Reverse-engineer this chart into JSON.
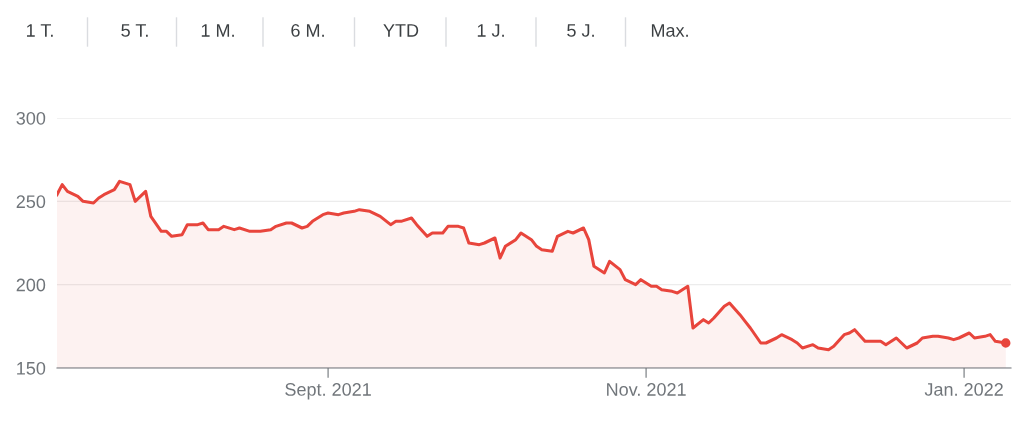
{
  "chart_data": {
    "type": "area",
    "annotations": [
      "1 T.",
      "5 T.",
      "1 M.",
      "6 M.",
      "YTD",
      "1 J.",
      "5 J.",
      "Max."
    ],
    "x": [
      "2021-07-11",
      "2021-07-12",
      "2021-07-13",
      "2021-07-15",
      "2021-07-16",
      "2021-07-18",
      "2021-07-19",
      "2021-07-20",
      "2021-07-22",
      "2021-07-23",
      "2021-07-25",
      "2021-07-26",
      "2021-07-28",
      "2021-07-29",
      "2021-07-31",
      "2021-08-01",
      "2021-08-02",
      "2021-08-04",
      "2021-08-05",
      "2021-08-07",
      "2021-08-08",
      "2021-08-09",
      "2021-08-11",
      "2021-08-12",
      "2021-08-14",
      "2021-08-15",
      "2021-08-17",
      "2021-08-18",
      "2021-08-19",
      "2021-08-21",
      "2021-08-22",
      "2021-08-24",
      "2021-08-25",
      "2021-08-27",
      "2021-08-28",
      "2021-08-29",
      "2021-08-31",
      "2021-09-01",
      "2021-09-03",
      "2021-09-04",
      "2021-09-06",
      "2021-09-07",
      "2021-09-09",
      "2021-09-11",
      "2021-09-13",
      "2021-09-14",
      "2021-09-15",
      "2021-09-17",
      "2021-09-18",
      "2021-09-20",
      "2021-09-21",
      "2021-09-23",
      "2021-09-24",
      "2021-09-26",
      "2021-09-27",
      "2021-09-28",
      "2021-09-30",
      "2021-10-01",
      "2021-10-03",
      "2021-10-04",
      "2021-10-05",
      "2021-10-07",
      "2021-10-08",
      "2021-10-10",
      "2021-10-11",
      "2021-10-12",
      "2021-10-14",
      "2021-10-15",
      "2021-10-17",
      "2021-10-18",
      "2021-10-20",
      "2021-10-21",
      "2021-10-22",
      "2021-10-24",
      "2021-10-25",
      "2021-10-27",
      "2021-10-28",
      "2021-10-30",
      "2021-10-31",
      "2021-11-02",
      "2021-11-03",
      "2021-11-04",
      "2021-11-06",
      "2021-11-07",
      "2021-11-09",
      "2021-11-10",
      "2021-11-12",
      "2021-11-13",
      "2021-11-14",
      "2021-11-16",
      "2021-11-17",
      "2021-11-19",
      "2021-11-20",
      "2021-11-21",
      "2021-11-23",
      "2021-11-24",
      "2021-11-26",
      "2021-11-27",
      "2021-11-29",
      "2021-11-30",
      "2021-12-01",
      "2021-12-03",
      "2021-12-04",
      "2021-12-06",
      "2021-12-07",
      "2021-12-09",
      "2021-12-10",
      "2021-12-11",
      "2021-12-13",
      "2021-12-14",
      "2021-12-16",
      "2021-12-17",
      "2021-12-19",
      "2021-12-20",
      "2021-12-21",
      "2021-12-23",
      "2021-12-24",
      "2021-12-26",
      "2021-12-27",
      "2021-12-29",
      "2021-12-30",
      "2021-12-31",
      "2022-01-02",
      "2022-01-03",
      "2022-01-05",
      "2022-01-06",
      "2022-01-07",
      "2022-01-09"
    ],
    "series": [
      {
        "color": "#e8453c",
        "values": [
          254,
          260,
          256,
          253,
          250,
          249,
          252,
          254,
          257,
          262,
          260,
          250,
          256,
          241,
          232,
          232,
          229,
          230,
          236,
          236,
          237,
          233,
          233,
          235,
          233,
          234,
          232,
          232,
          232,
          233,
          235,
          237,
          237,
          234,
          235,
          238,
          242,
          243,
          242,
          243,
          244,
          245,
          244,
          241,
          236,
          238,
          238,
          240,
          236,
          229,
          231,
          231,
          235,
          235,
          234,
          225,
          224,
          225,
          228,
          216,
          223,
          227,
          231,
          227,
          223,
          221,
          220,
          229,
          232,
          231,
          234,
          227,
          211,
          207,
          214,
          209,
          203,
          200,
          203,
          199,
          199,
          197,
          196,
          195,
          199,
          174,
          179,
          177,
          180,
          187,
          189,
          182,
          178,
          174,
          165,
          165,
          168,
          170,
          167,
          165,
          162,
          164,
          162,
          161,
          163,
          170,
          171,
          173,
          166,
          166,
          166,
          164,
          168,
          165,
          162,
          165,
          168,
          169,
          169,
          168,
          167,
          168,
          171,
          168,
          169,
          170,
          166,
          165
        ]
      }
    ],
    "xlim": [
      "2021-07-11",
      "2022-01-10"
    ],
    "xticks": [
      {
        "value": "2021-09-01",
        "label": "Sept. 2021"
      },
      {
        "value": "2021-11-01",
        "label": "Nov. 2021"
      },
      {
        "value": "2022-01-01",
        "label": "Jan. 2022"
      }
    ],
    "ylim": [
      150,
      300
    ],
    "yticks": [
      150,
      200,
      250,
      300
    ],
    "grid": "y",
    "legend": false
  }
}
